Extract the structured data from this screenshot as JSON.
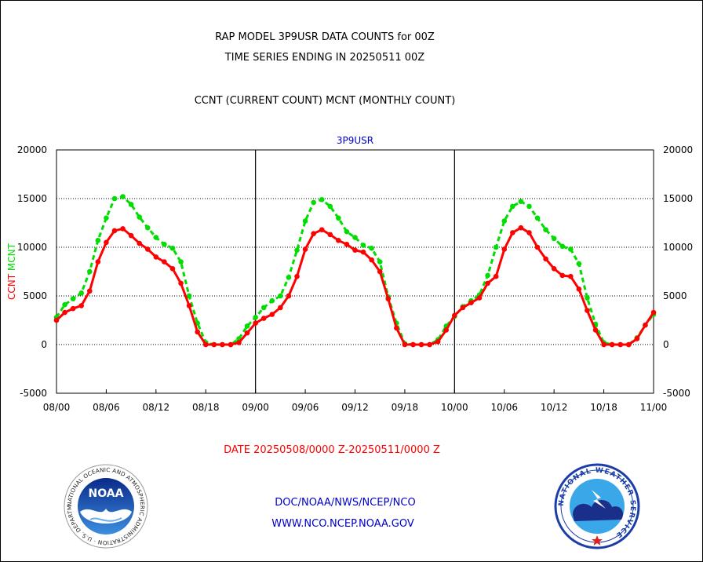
{
  "header": {
    "line1": "RAP MODEL 3P9USR DATA COUNTS for 00Z",
    "line2": "TIME SERIES ENDING IN 20250511 00Z",
    "line3": "CCNT (CURRENT COUNT) MCNT (MONTHLY COUNT)"
  },
  "footer": {
    "date_range": "DATE 20250508/0000 Z-20250511/0000 Z",
    "org_path": "DOC/NOAA/NWS/NCEP/NCO",
    "website": "WWW.NCO.NCEP.NOAA.GOV"
  },
  "logos": {
    "noaa": {
      "text": "NOAA",
      "ring_text": "NATIONAL OCEANIC AND ATMOSPHERIC ADMINISTRATION · U.S. DEPARTMENT OF COMMERCE"
    },
    "nws": {
      "ring_text": "NATIONAL WEATHER SERVICE"
    }
  },
  "colors": {
    "ccnt": "#ff0000",
    "mcnt": "#00dd00",
    "title_blue": "#0000cc",
    "date_red": "#ff0000"
  },
  "chart_data": {
    "type": "line",
    "title": "3P9USR",
    "ylabel_left": [
      "CCNT",
      "MCNT"
    ],
    "ylim": [
      -5000,
      20000
    ],
    "yticks": [
      -5000,
      0,
      5000,
      10000,
      15000,
      20000
    ],
    "xlim": [
      0,
      72
    ],
    "xticks": [
      {
        "x": 0,
        "label": "08/00"
      },
      {
        "x": 6,
        "label": "08/06"
      },
      {
        "x": 12,
        "label": "08/12"
      },
      {
        "x": 18,
        "label": "08/18"
      },
      {
        "x": 24,
        "label": "09/00"
      },
      {
        "x": 30,
        "label": "09/06"
      },
      {
        "x": 36,
        "label": "09/12"
      },
      {
        "x": 42,
        "label": "09/18"
      },
      {
        "x": 48,
        "label": "10/00"
      },
      {
        "x": 54,
        "label": "10/06"
      },
      {
        "x": 60,
        "label": "10/12"
      },
      {
        "x": 66,
        "label": "10/18"
      },
      {
        "x": 72,
        "label": "11/00"
      }
    ],
    "day_separators": [
      24,
      48
    ],
    "grid": "horizontal dotted",
    "series": [
      {
        "name": "CCNT",
        "style": "solid",
        "points": [
          [
            0,
            2500
          ],
          [
            1,
            3300
          ],
          [
            2,
            3700
          ],
          [
            3,
            4000
          ],
          [
            4,
            5500
          ],
          [
            5,
            8500
          ],
          [
            6,
            10500
          ],
          [
            7,
            11700
          ],
          [
            8,
            11900
          ],
          [
            9,
            11200
          ],
          [
            10,
            10400
          ],
          [
            11,
            9800
          ],
          [
            12,
            9000
          ],
          [
            13,
            8500
          ],
          [
            14,
            7800
          ],
          [
            15,
            6300
          ],
          [
            16,
            4000
          ],
          [
            17,
            1300
          ],
          [
            18,
            0
          ],
          [
            19,
            0
          ],
          [
            20,
            0
          ],
          [
            21,
            0
          ],
          [
            22,
            200
          ],
          [
            23,
            1200
          ],
          [
            24,
            2200
          ],
          [
            25,
            2700
          ],
          [
            26,
            3100
          ],
          [
            27,
            3800
          ],
          [
            28,
            5000
          ],
          [
            29,
            7000
          ],
          [
            30,
            9800
          ],
          [
            31,
            11400
          ],
          [
            32,
            11800
          ],
          [
            33,
            11300
          ],
          [
            34,
            10700
          ],
          [
            35,
            10300
          ],
          [
            36,
            9700
          ],
          [
            37,
            9500
          ],
          [
            38,
            8700
          ],
          [
            39,
            7500
          ],
          [
            40,
            4700
          ],
          [
            41,
            1700
          ],
          [
            42,
            0
          ],
          [
            43,
            0
          ],
          [
            44,
            0
          ],
          [
            45,
            0
          ],
          [
            46,
            300
          ],
          [
            47,
            1500
          ],
          [
            48,
            3000
          ],
          [
            49,
            3800
          ],
          [
            50,
            4300
          ],
          [
            51,
            4800
          ],
          [
            52,
            6300
          ],
          [
            53,
            7000
          ],
          [
            54,
            9800
          ],
          [
            55,
            11500
          ],
          [
            56,
            12000
          ],
          [
            57,
            11500
          ],
          [
            58,
            10000
          ],
          [
            59,
            8800
          ],
          [
            60,
            7800
          ],
          [
            61,
            7100
          ],
          [
            62,
            7000
          ],
          [
            63,
            5700
          ],
          [
            64,
            3500
          ],
          [
            65,
            1500
          ],
          [
            66,
            0
          ],
          [
            67,
            0
          ],
          [
            68,
            0
          ],
          [
            69,
            0
          ],
          [
            70,
            600
          ],
          [
            71,
            2000
          ],
          [
            72,
            3300
          ]
        ]
      },
      {
        "name": "MCNT",
        "style": "dashed",
        "points": [
          [
            0,
            2800
          ],
          [
            1,
            4100
          ],
          [
            2,
            4700
          ],
          [
            3,
            5300
          ],
          [
            4,
            7500
          ],
          [
            5,
            10700
          ],
          [
            6,
            13000
          ],
          [
            7,
            15000
          ],
          [
            8,
            15200
          ],
          [
            9,
            14400
          ],
          [
            10,
            13100
          ],
          [
            11,
            12000
          ],
          [
            12,
            11000
          ],
          [
            13,
            10300
          ],
          [
            14,
            9900
          ],
          [
            15,
            8500
          ],
          [
            16,
            5000
          ],
          [
            17,
            2200
          ],
          [
            18,
            200
          ],
          [
            19,
            0
          ],
          [
            20,
            0
          ],
          [
            21,
            0
          ],
          [
            22,
            600
          ],
          [
            23,
            1900
          ],
          [
            24,
            2800
          ],
          [
            25,
            3800
          ],
          [
            26,
            4500
          ],
          [
            27,
            5000
          ],
          [
            28,
            6900
          ],
          [
            29,
            9700
          ],
          [
            30,
            12700
          ],
          [
            31,
            14600
          ],
          [
            32,
            14900
          ],
          [
            33,
            14200
          ],
          [
            34,
            13000
          ],
          [
            35,
            11600
          ],
          [
            36,
            11000
          ],
          [
            37,
            10200
          ],
          [
            38,
            9900
          ],
          [
            39,
            8500
          ],
          [
            40,
            4900
          ],
          [
            41,
            2200
          ],
          [
            42,
            100
          ],
          [
            43,
            0
          ],
          [
            44,
            0
          ],
          [
            45,
            0
          ],
          [
            46,
            500
          ],
          [
            47,
            1900
          ],
          [
            48,
            2900
          ],
          [
            49,
            3900
          ],
          [
            50,
            4500
          ],
          [
            51,
            5100
          ],
          [
            52,
            7100
          ],
          [
            53,
            10000
          ],
          [
            54,
            12700
          ],
          [
            55,
            14200
          ],
          [
            56,
            14700
          ],
          [
            57,
            14200
          ],
          [
            58,
            13000
          ],
          [
            59,
            11800
          ],
          [
            60,
            10900
          ],
          [
            61,
            10100
          ],
          [
            62,
            9800
          ],
          [
            63,
            8300
          ],
          [
            64,
            4800
          ],
          [
            65,
            2100
          ],
          [
            66,
            200
          ],
          [
            67,
            0
          ],
          [
            68,
            0
          ],
          [
            69,
            0
          ],
          [
            70,
            700
          ],
          [
            71,
            2000
          ],
          [
            72,
            3100
          ]
        ]
      }
    ]
  }
}
